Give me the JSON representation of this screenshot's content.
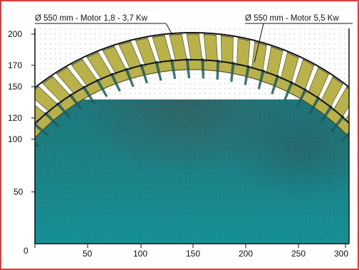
{
  "labels": {
    "left": "Ø 550 mm - Motor 1,8 - 3,7 Kw",
    "right": "Ø 550 mm - Motor 5,5 Kw"
  },
  "axes": {
    "x_ticks": [
      "0",
      "50",
      "100",
      "150",
      "200",
      "250",
      "300"
    ],
    "y_ticks": [
      "200",
      "170",
      "150",
      "120",
      "100",
      "50"
    ]
  },
  "colors": {
    "border": "#d84040",
    "grid": "#2a3a3a",
    "blade_fill": "#b9b24a",
    "blade_edge": "#3d3d16",
    "background_top": "#1a6f73",
    "background_bottom": "#158e93"
  }
}
